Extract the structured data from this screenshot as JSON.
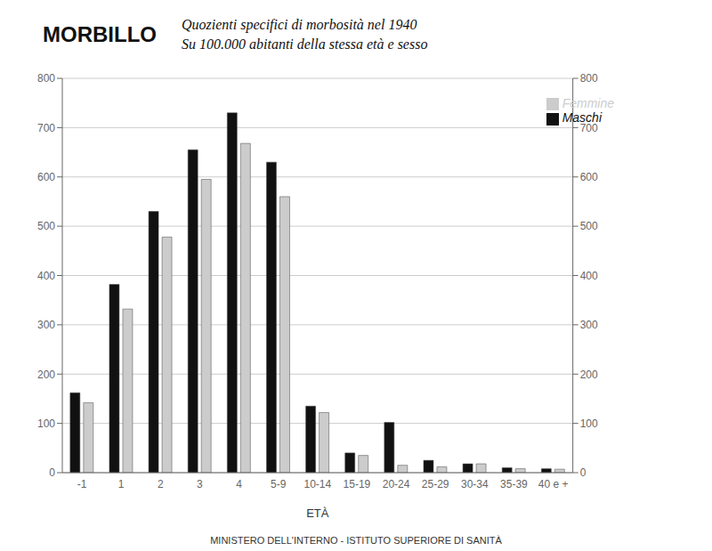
{
  "chart_data": {
    "type": "bar",
    "title": "MORBILLO",
    "subtitle": [
      "Quozienti specifici di morbosità nel 1940",
      "Su 100.000 abitanti della stessa età e sesso"
    ],
    "x_label": "ETÀ",
    "categories": [
      "-1",
      "1",
      "2",
      "3",
      "4",
      "5-9",
      "10-14",
      "15-19",
      "20-24",
      "25-29",
      "30-34",
      "35-39",
      "40 e +"
    ],
    "series": [
      {
        "name": "Maschi",
        "color": "#111111",
        "values": [
          162,
          382,
          530,
          655,
          730,
          630,
          135,
          40,
          102,
          25,
          18,
          10,
          8
        ]
      },
      {
        "name": "Femmine",
        "color": "#cccccc",
        "values": [
          142,
          332,
          478,
          595,
          668,
          560,
          122,
          35,
          15,
          12,
          18,
          8,
          7
        ]
      }
    ],
    "ylim": [
      0,
      800
    ],
    "yticks": [
      0,
      100,
      200,
      300,
      400,
      500,
      600,
      700,
      800
    ],
    "y2lim": [
      0,
      800
    ],
    "y2ticks": [
      0,
      100,
      200,
      300,
      400,
      500,
      600,
      700,
      800
    ],
    "grid": true,
    "legend": "upper right",
    "annotations": [
      "MINISTERO DELL'INTERNO - ISTITUTO SUPERIORE DI SANITÀ"
    ]
  }
}
